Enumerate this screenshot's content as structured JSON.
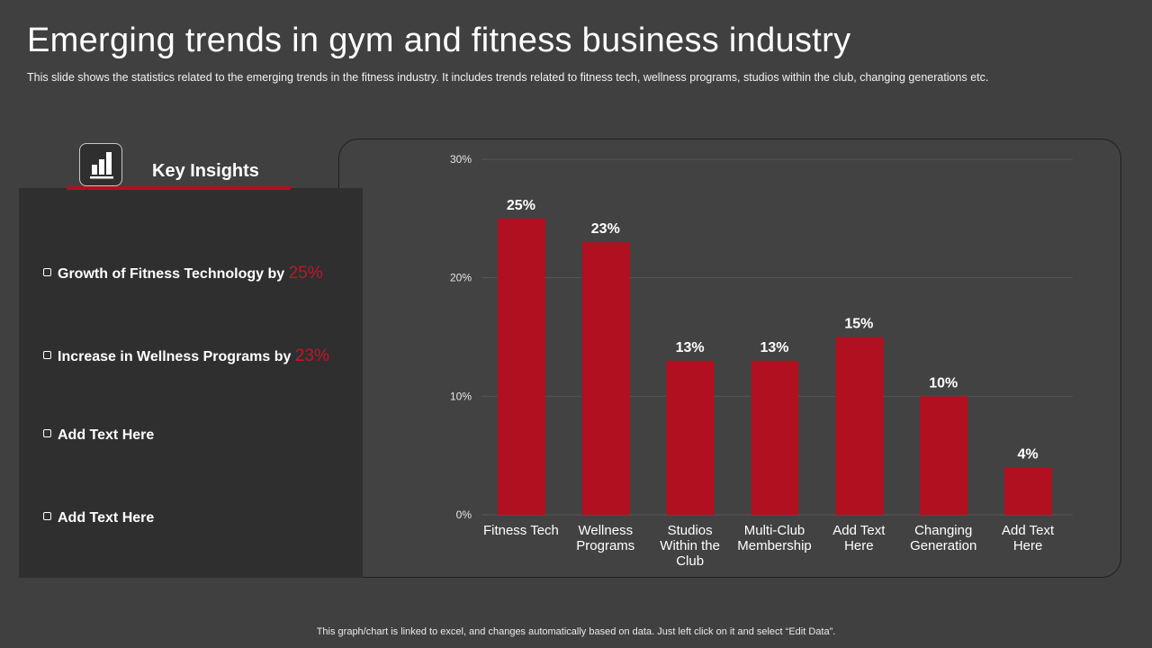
{
  "page": {
    "title": "Emerging trends in gym and fitness business industry",
    "subtitle": "This slide shows the statistics related to the emerging trends in the fitness industry. It includes trends related to fitness tech, wellness programs, studios within the club, changing generations etc.",
    "footer": "This graph/chart is linked to excel,  and changes automatically based on data. Just left click on it and select “Edit Data”."
  },
  "insights": {
    "heading": "Key Insights",
    "icon": "bar-chart-icon",
    "items": [
      {
        "text": "Growth of Fitness Technology by ",
        "highlight": "25%"
      },
      {
        "text": "Increase in Wellness Programs by ",
        "highlight": "23%"
      },
      {
        "text": "Add Text Here",
        "highlight": ""
      },
      {
        "text": "Add Text Here",
        "highlight": ""
      }
    ]
  },
  "colors": {
    "bar": "#b01020",
    "highlight": "#c0152a",
    "gridline": "#555555",
    "background": "#404040"
  },
  "chart_data": {
    "type": "bar",
    "categories": [
      "Fitness Tech",
      "Wellness Programs",
      "Studios Within the Club",
      "Multi-Club Membership",
      "Add Text Here",
      "Changing Generation",
      "Add Text Here"
    ],
    "category_lines": [
      [
        "Fitness Tech"
      ],
      [
        "Wellness",
        "Programs"
      ],
      [
        "Studios",
        "Within the",
        "Club"
      ],
      [
        "Multi-Club",
        "Membership"
      ],
      [
        "Add Text",
        "Here"
      ],
      [
        "Changing",
        "Generation"
      ],
      [
        "Add Text",
        "Here"
      ]
    ],
    "values": [
      25,
      23,
      13,
      13,
      15,
      10,
      4
    ],
    "value_labels": [
      "25%",
      "23%",
      "13%",
      "13%",
      "15%",
      "10%",
      "4%"
    ],
    "ylim": [
      0,
      30
    ],
    "yticks": [
      0,
      10,
      20,
      30
    ],
    "ytick_labels": [
      "0%",
      "10%",
      "20%",
      "30%"
    ],
    "title": "",
    "xlabel": "",
    "ylabel": "",
    "grid": true
  }
}
